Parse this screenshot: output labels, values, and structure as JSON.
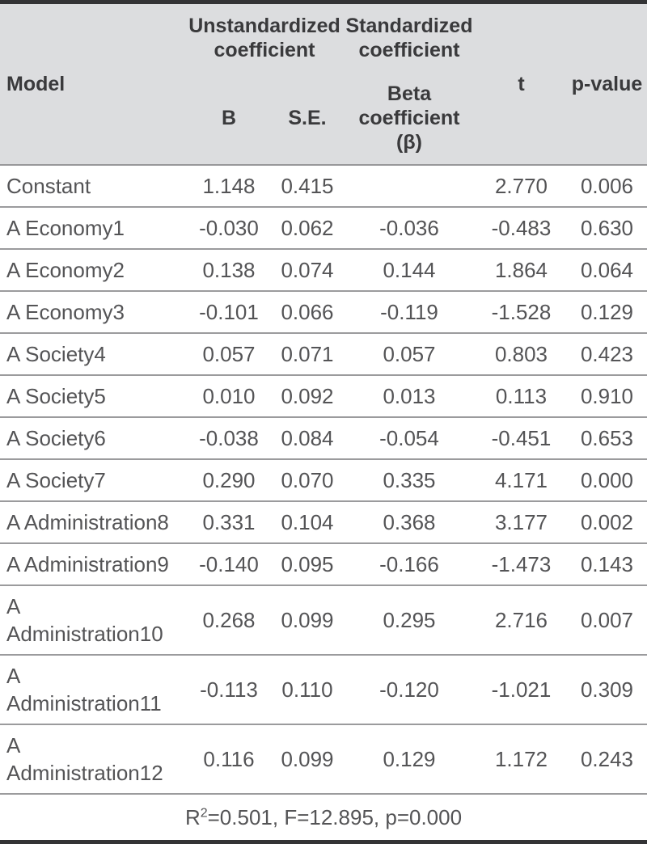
{
  "table": {
    "header": {
      "model": "Model",
      "unstd_group": "Unstandardized\ncoefficient",
      "std_group": "Standardized\ncoefficient",
      "b": "B",
      "se": "S.E.",
      "beta": "Beta\ncoefficient (β)",
      "t": "t",
      "p": "p-value"
    },
    "rows": [
      {
        "model": "Constant",
        "b": "1.148",
        "se": "0.415",
        "beta": "",
        "t": "2.770",
        "p": "0.006"
      },
      {
        "model": "A Economy1",
        "b": "-0.030",
        "se": "0.062",
        "beta": "-0.036",
        "t": "-0.483",
        "p": "0.630"
      },
      {
        "model": "A Economy2",
        "b": "0.138",
        "se": "0.074",
        "beta": "0.144",
        "t": "1.864",
        "p": "0.064"
      },
      {
        "model": "A Economy3",
        "b": "-0.101",
        "se": "0.066",
        "beta": "-0.119",
        "t": "-1.528",
        "p": "0.129"
      },
      {
        "model": "A Society4",
        "b": "0.057",
        "se": "0.071",
        "beta": "0.057",
        "t": "0.803",
        "p": "0.423"
      },
      {
        "model": "A Society5",
        "b": "0.010",
        "se": "0.092",
        "beta": "0.013",
        "t": "0.113",
        "p": "0.910"
      },
      {
        "model": "A Society6",
        "b": "-0.038",
        "se": "0.084",
        "beta": "-0.054",
        "t": "-0.451",
        "p": "0.653"
      },
      {
        "model": "A Society7",
        "b": "0.290",
        "se": "0.070",
        "beta": "0.335",
        "t": "4.171",
        "p": "0.000"
      },
      {
        "model": "A Administration8",
        "b": "0.331",
        "se": "0.104",
        "beta": "0.368",
        "t": "3.177",
        "p": "0.002"
      },
      {
        "model": "A Administration9",
        "b": "-0.140",
        "se": "0.095",
        "beta": "-0.166",
        "t": "-1.473",
        "p": "0.143"
      },
      {
        "model": "A\nAdministration10",
        "b": "0.268",
        "se": "0.099",
        "beta": "0.295",
        "t": "2.716",
        "p": "0.007"
      },
      {
        "model": "A\nAdministration11",
        "b": "-0.113",
        "se": "0.110",
        "beta": "-0.120",
        "t": "-1.021",
        "p": "0.309"
      },
      {
        "model": "A\nAdministration12",
        "b": "0.116",
        "se": "0.099",
        "beta": "0.129",
        "t": "1.172",
        "p": "0.243"
      }
    ],
    "footer": {
      "prefix": "R",
      "sup": "2",
      "rest": "=0.501, F=12.895, p=0.000"
    }
  },
  "colors": {
    "header_background": "#dcdddf",
    "header_text": "#3a3a3c",
    "body_text": "#545456",
    "row_rule": "#9b9b9d",
    "outer_border": "#333335"
  }
}
